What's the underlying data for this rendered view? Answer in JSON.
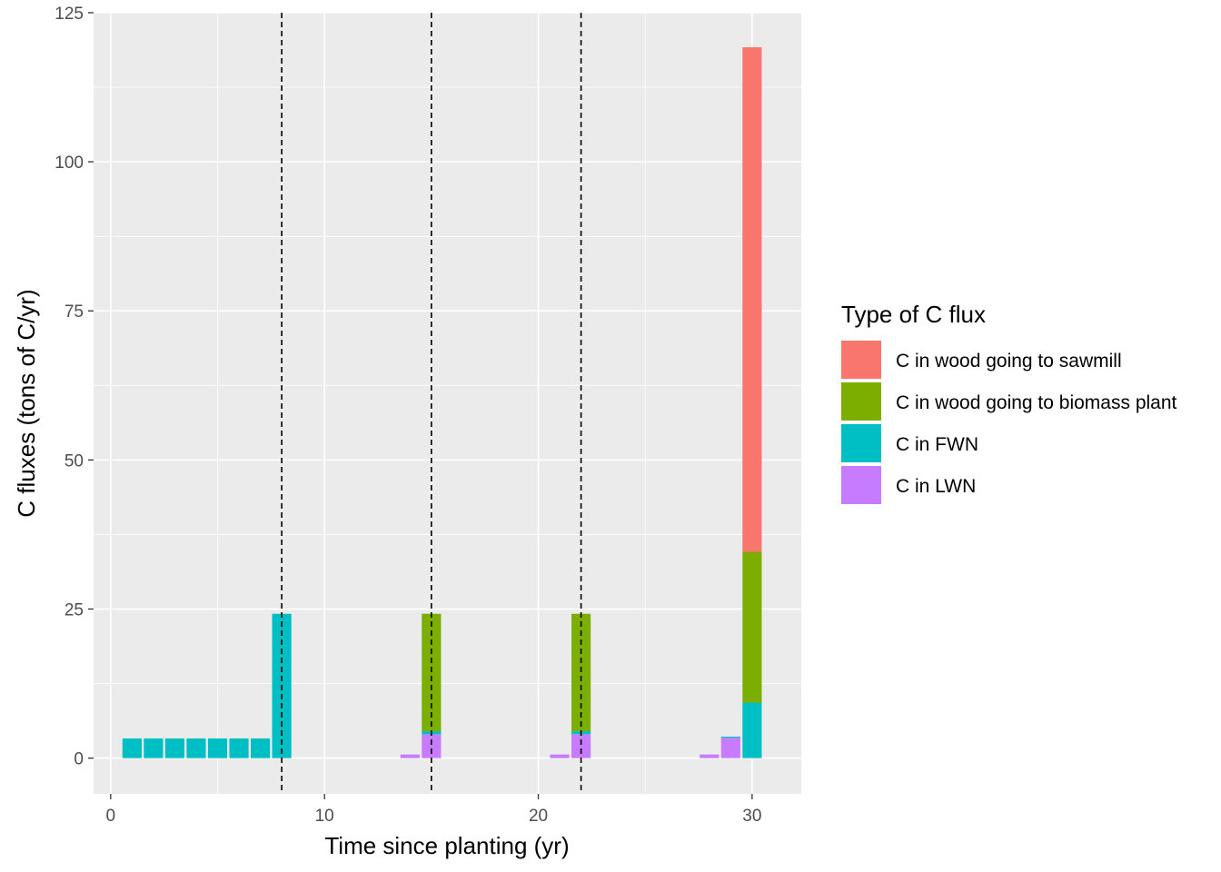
{
  "chart_data": {
    "type": "bar",
    "stacked": true,
    "xlabel": "Time since planting (yr)",
    "ylabel": "C fluxes (tons of C/yr)",
    "xlim": [
      -0.8,
      32.3
    ],
    "ylim": [
      -6,
      125
    ],
    "x_ticks": [
      0,
      10,
      20,
      30
    ],
    "y_ticks": [
      0,
      25,
      50,
      75,
      100,
      125
    ],
    "grid": true,
    "legend": {
      "title": "Type of C flux",
      "placement": "right",
      "items": [
        {
          "label": "C in wood going to sawmill",
          "color": "#F8766D"
        },
        {
          "label": "C in wood going to biomass plant",
          "color": "#7CAE00"
        },
        {
          "label": "C in FWN",
          "color": "#00BFC4"
        },
        {
          "label": "C in LWN",
          "color": "#C77CFF"
        }
      ]
    },
    "series": [
      {
        "name": "C in LWN",
        "color": "#C77CFF",
        "x": [
          14,
          15,
          21,
          22,
          28,
          29
        ],
        "values": [
          0.6,
          4.0,
          0.6,
          4.0,
          0.6,
          3.4
        ]
      },
      {
        "name": "C in FWN",
        "color": "#00BFC4",
        "x": [
          1,
          2,
          3,
          4,
          5,
          6,
          7,
          8,
          15,
          22,
          29,
          30
        ],
        "values": [
          3.3,
          3.3,
          3.3,
          3.3,
          3.3,
          3.3,
          3.3,
          24.2,
          0.5,
          0.5,
          0.2,
          9.3
        ]
      },
      {
        "name": "C in wood going to biomass plant",
        "color": "#7CAE00",
        "x": [
          15,
          22,
          30
        ],
        "values": [
          19.7,
          19.7,
          25.3
        ]
      },
      {
        "name": "C in wood going to sawmill",
        "color": "#F8766D",
        "x": [
          30
        ],
        "values": [
          84.6
        ]
      }
    ],
    "vlines": {
      "x": [
        8,
        15,
        22
      ],
      "style": "dashed",
      "color": "#000000"
    }
  }
}
